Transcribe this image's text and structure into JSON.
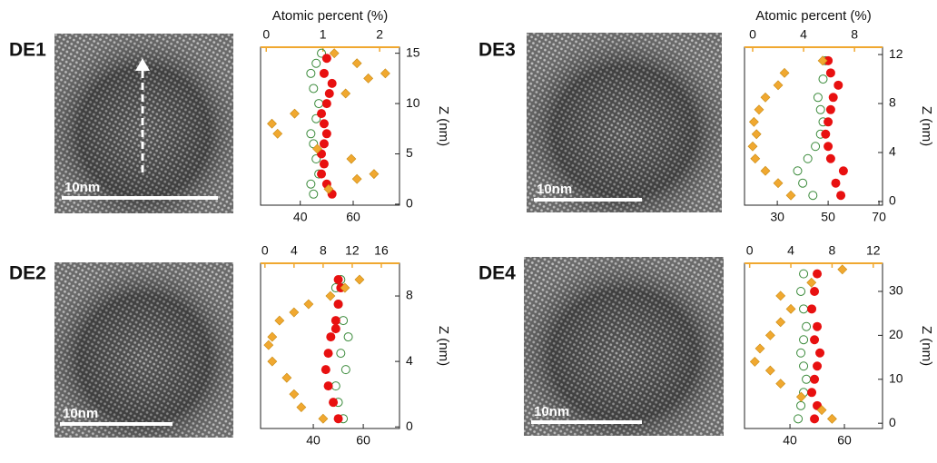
{
  "chart_data": [
    {
      "type": "scatter",
      "title": "DE1",
      "scale_bar": "10nm",
      "x2label": "Atomic percent (%)",
      "ylabel": "Z (nm)",
      "xlim": [
        25,
        77.5
      ],
      "xticks": [
        40,
        60
      ],
      "x2lim": [
        -0.1,
        2.35
      ],
      "x2ticks": [
        0,
        1,
        2
      ],
      "ylim": [
        -0.1,
        15.6
      ],
      "yticks": [
        0,
        5,
        10,
        15
      ],
      "x2color": "#f0a830",
      "series": [
        {
          "color": "#3a8a3a",
          "marker": "open-circle",
          "x": [
            45,
            44,
            47,
            46,
            45,
            44,
            46,
            47,
            45,
            44,
            46,
            48
          ],
          "y": [
            1,
            2,
            3,
            4.5,
            6,
            7,
            8.5,
            10,
            11.5,
            13,
            14,
            15
          ]
        },
        {
          "color": "#e81010",
          "marker": "circle",
          "x": [
            52,
            50,
            48,
            49,
            48,
            49,
            50,
            49,
            48,
            50,
            51,
            52,
            49,
            50
          ],
          "y": [
            1,
            2,
            3,
            4,
            5,
            6,
            7,
            8,
            9,
            10,
            11,
            12,
            13,
            14.5
          ]
        },
        {
          "color": "#f0a830",
          "marker": "diamond",
          "axis": "x2",
          "x": [
            1.1,
            1.6,
            1.9,
            1.5,
            0.9,
            0.2,
            0.1,
            0.5,
            1.4,
            1.8,
            2.1,
            1.6,
            1.2
          ],
          "y": [
            1.5,
            2.5,
            3,
            4.5,
            5.5,
            7,
            8,
            9,
            11,
            12.5,
            13,
            14,
            15
          ]
        }
      ]
    },
    {
      "type": "scatter",
      "title": "DE2",
      "scale_bar": "10nm",
      "ylabel": "Z (nm)",
      "xlim": [
        18.9,
        74.5
      ],
      "xticks": [
        40,
        60
      ],
      "x2lim": [
        -0.6,
        18.5
      ],
      "x2ticks": [
        0,
        4,
        8,
        12,
        16
      ],
      "ylim": [
        -0.1,
        10
      ],
      "yticks": [
        0,
        4,
        8
      ],
      "x2color": "#f0a830",
      "series": [
        {
          "color": "#3a8a3a",
          "marker": "open-circle",
          "x": [
            52,
            50,
            49,
            53,
            51,
            54,
            52,
            50,
            49,
            51
          ],
          "y": [
            0.5,
            1.5,
            2.5,
            3.5,
            4.5,
            5.5,
            6.5,
            7.5,
            8.5,
            9
          ]
        },
        {
          "color": "#e81010",
          "marker": "circle",
          "x": [
            50,
            48,
            46,
            45,
            46,
            47,
            49,
            50,
            51,
            50,
            49
          ],
          "y": [
            0.5,
            1.5,
            2.5,
            3.5,
            4.5,
            5.5,
            6.5,
            7.5,
            8.5,
            9,
            6
          ]
        },
        {
          "color": "#f0a830",
          "marker": "diamond",
          "axis": "x2",
          "x": [
            8,
            5,
            4,
            3,
            1,
            0.5,
            1,
            2,
            4,
            6,
            9,
            11,
            13
          ],
          "y": [
            0.5,
            1.2,
            2,
            3,
            4,
            5,
            5.5,
            6.5,
            7,
            7.5,
            8,
            8.5,
            9
          ]
        }
      ]
    },
    {
      "type": "scatter",
      "title": "DE3",
      "scale_bar": "10nm",
      "x2label": "Atomic percent (%)",
      "ylabel": "Z (nm)",
      "xlim": [
        17.1,
        71.4
      ],
      "xticks": [
        30,
        50,
        70
      ],
      "x2lim": [
        -0.64,
        10.2
      ],
      "x2ticks": [
        0,
        4,
        8
      ],
      "ylim": [
        -0.3,
        12.6
      ],
      "yticks": [
        0,
        4,
        8,
        12
      ],
      "x2color": "#f0a830",
      "series": [
        {
          "color": "#3a8a3a",
          "marker": "open-circle",
          "x": [
            44,
            40,
            38,
            42,
            45,
            47,
            48,
            47,
            46,
            48,
            49
          ],
          "y": [
            0.5,
            1.5,
            2.5,
            3.5,
            4.5,
            5.5,
            6.5,
            7.5,
            8.5,
            10,
            11.5
          ]
        },
        {
          "color": "#e81010",
          "marker": "circle",
          "x": [
            55,
            53,
            56,
            51,
            50,
            49,
            50,
            51,
            52,
            54,
            51,
            50
          ],
          "y": [
            0.5,
            1.5,
            2.5,
            3.5,
            4.5,
            5.5,
            6.5,
            7.5,
            8.5,
            9.5,
            10.5,
            11.5
          ]
        },
        {
          "color": "#f0a830",
          "marker": "diamond",
          "axis": "x2",
          "x": [
            3,
            2,
            1,
            0.2,
            0,
            0.3,
            0.1,
            0.5,
            1,
            2,
            2.5,
            5.5
          ],
          "y": [
            0.5,
            1.5,
            2.5,
            3.5,
            4.5,
            5.5,
            6.5,
            7.5,
            8.5,
            9.5,
            10.5,
            11.5
          ]
        }
      ]
    },
    {
      "type": "scatter",
      "title": "DE4",
      "scale_bar": "10nm",
      "ylabel": "Z (nm)",
      "xlim": [
        23.3,
        74
      ],
      "xticks": [
        40,
        60
      ],
      "x2lim": [
        -0.5,
        12.9
      ],
      "x2ticks": [
        0,
        4,
        8,
        12
      ],
      "ylim": [
        -1.2,
        36.4
      ],
      "yticks": [
        0,
        10,
        20,
        30
      ],
      "x2color": "#f0a830",
      "series": [
        {
          "color": "#3a8a3a",
          "marker": "open-circle",
          "x": [
            43,
            44,
            45,
            46,
            45,
            44,
            45,
            46,
            45,
            44,
            45
          ],
          "y": [
            1,
            4,
            7,
            10,
            13,
            16,
            19,
            22,
            26,
            30,
            34
          ]
        },
        {
          "color": "#e81010",
          "marker": "circle",
          "x": [
            49,
            50,
            48,
            49,
            50,
            51,
            49,
            50,
            48,
            49,
            50
          ],
          "y": [
            1,
            4,
            7,
            10,
            13,
            16,
            19,
            22,
            26,
            30,
            34
          ]
        },
        {
          "color": "#f0a830",
          "marker": "diamond",
          "axis": "x2",
          "x": [
            8,
            7,
            5,
            3,
            2,
            0.5,
            1,
            2,
            3,
            4,
            3,
            6,
            9
          ],
          "y": [
            1,
            3,
            6,
            9,
            12,
            14,
            17,
            20,
            23,
            26,
            29,
            32,
            35
          ]
        }
      ]
    }
  ]
}
